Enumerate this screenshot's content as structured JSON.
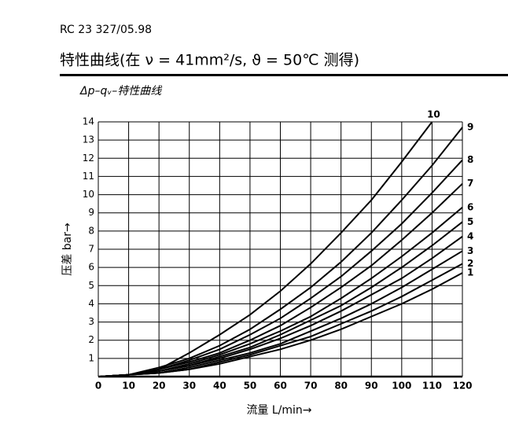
{
  "header": "RC 23 327/05.98",
  "heading": "特性曲线(在 ν = 41mm²/s, ϑ = 50℃ 测得)",
  "chart_data": {
    "type": "line",
    "title": "Δp–qᵥ–特性曲线",
    "x_label": "流量 L/min→",
    "y_label": "压差 bar→",
    "x": [
      0,
      10,
      20,
      30,
      40,
      50,
      60,
      70,
      80,
      90,
      100,
      110,
      120
    ],
    "xlim": [
      0,
      120
    ],
    "ylim": [
      0,
      14
    ],
    "xticks": [
      0,
      10,
      20,
      30,
      40,
      50,
      60,
      70,
      80,
      90,
      100,
      110,
      120
    ],
    "yticks": [
      1,
      2,
      3,
      4,
      5,
      6,
      7,
      8,
      9,
      10,
      11,
      12,
      13,
      14
    ],
    "grid": true,
    "series": [
      {
        "name": "1",
        "color": "#000000",
        "values": [
          0,
          0.1,
          0.2,
          0.4,
          0.7,
          1.1,
          1.5,
          2.0,
          2.6,
          3.3,
          4.0,
          4.8,
          5.7
        ]
      },
      {
        "name": "2",
        "color": "#000000",
        "values": [
          0,
          0.1,
          0.2,
          0.4,
          0.8,
          1.2,
          1.7,
          2.2,
          2.9,
          3.6,
          4.4,
          5.3,
          6.2
        ]
      },
      {
        "name": "3",
        "color": "#000000",
        "values": [
          0,
          0.1,
          0.2,
          0.5,
          0.9,
          1.3,
          1.8,
          2.5,
          3.2,
          4.0,
          4.9,
          5.9,
          6.9
        ]
      },
      {
        "name": "4",
        "color": "#000000",
        "values": [
          0,
          0.1,
          0.3,
          0.6,
          1.0,
          1.5,
          2.1,
          2.8,
          3.6,
          4.5,
          5.4,
          6.5,
          7.7
        ]
      },
      {
        "name": "5",
        "color": "#000000",
        "values": [
          0,
          0.1,
          0.3,
          0.6,
          1.1,
          1.6,
          2.3,
          3.1,
          3.9,
          4.9,
          6.0,
          7.2,
          8.5
        ]
      },
      {
        "name": "6",
        "color": "#000000",
        "values": [
          0,
          0.1,
          0.3,
          0.7,
          1.2,
          1.8,
          2.5,
          3.3,
          4.3,
          5.4,
          6.6,
          7.9,
          9.3
        ]
      },
      {
        "name": "7",
        "color": "#000000",
        "values": [
          0,
          0.1,
          0.4,
          0.8,
          1.3,
          2.0,
          2.8,
          3.8,
          4.9,
          6.1,
          7.5,
          9.0,
          10.6
        ]
      },
      {
        "name": "8",
        "color": "#000000",
        "values": [
          0,
          0.1,
          0.4,
          0.9,
          1.5,
          2.3,
          3.2,
          4.3,
          5.5,
          6.9,
          8.4,
          10.1,
          11.9
        ]
      },
      {
        "name": "9",
        "color": "#000000",
        "values": [
          0,
          0.1,
          0.5,
          1.0,
          1.7,
          2.6,
          3.7,
          4.9,
          6.3,
          7.9,
          9.7,
          11.6,
          13.7
        ]
      },
      {
        "name": "10",
        "color": "#000000",
        "values": [
          0,
          0.1,
          0.4,
          1.3,
          2.3,
          3.4,
          4.7,
          6.2,
          7.9,
          9.7,
          11.8,
          14.0,
          null
        ]
      }
    ]
  }
}
